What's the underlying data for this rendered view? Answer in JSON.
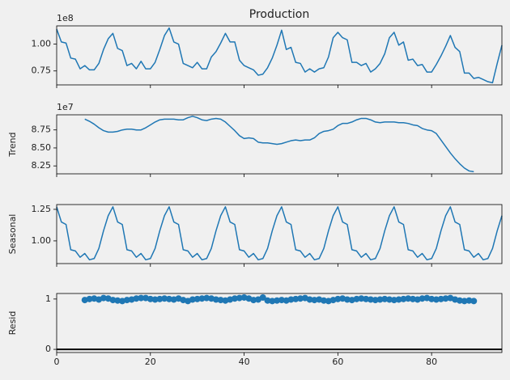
{
  "chart_data": [
    {
      "type": "line",
      "title": "Production",
      "offset_label": "1e8",
      "color": "#1f77b4",
      "x": [
        0,
        1,
        2,
        3,
        4,
        5,
        6,
        7,
        8,
        9,
        10,
        11,
        12,
        13,
        14,
        15,
        16,
        17,
        18,
        19,
        20,
        21,
        22,
        23,
        24,
        25,
        26,
        27,
        28,
        29,
        30,
        31,
        32,
        33,
        34,
        35,
        36,
        37,
        38,
        39,
        40,
        41,
        42,
        43,
        44,
        45,
        46,
        47,
        48,
        49,
        50,
        51,
        52,
        53,
        54,
        55,
        56,
        57,
        58,
        59,
        60,
        61,
        62,
        63,
        64,
        65,
        66,
        67,
        68,
        69,
        70,
        71,
        72,
        73,
        74,
        75,
        76,
        77,
        78,
        79,
        80,
        81,
        82,
        83,
        84,
        85,
        86,
        87,
        88,
        89,
        90,
        91,
        92,
        93,
        94,
        95
      ],
      "values": [
        1.14,
        1.02,
        1.01,
        0.87,
        0.86,
        0.77,
        0.8,
        0.76,
        0.76,
        0.82,
        0.95,
        1.05,
        1.1,
        0.96,
        0.94,
        0.8,
        0.82,
        0.77,
        0.84,
        0.77,
        0.77,
        0.83,
        0.95,
        1.08,
        1.15,
        1.02,
        1.0,
        0.82,
        0.8,
        0.78,
        0.83,
        0.77,
        0.77,
        0.88,
        0.93,
        1.01,
        1.1,
        1.02,
        1.02,
        0.85,
        0.8,
        0.78,
        0.76,
        0.71,
        0.72,
        0.78,
        0.87,
        0.99,
        1.13,
        0.95,
        0.97,
        0.83,
        0.82,
        0.74,
        0.77,
        0.74,
        0.77,
        0.78,
        0.88,
        1.06,
        1.11,
        1.06,
        1.04,
        0.83,
        0.83,
        0.8,
        0.82,
        0.74,
        0.77,
        0.82,
        0.91,
        1.06,
        1.11,
        0.99,
        1.02,
        0.85,
        0.86,
        0.8,
        0.81,
        0.74,
        0.74,
        0.81,
        0.89,
        0.98,
        1.08,
        0.97,
        0.93,
        0.73,
        0.73,
        0.68,
        0.69,
        0.67,
        0.65,
        0.64,
        0.82,
        0.99
      ],
      "xlim": [
        0,
        95
      ],
      "xticks": [
        0,
        20,
        40,
        60,
        80
      ],
      "ylim": [
        0.62,
        1.17
      ],
      "yticks": [
        {
          "value": 0.75,
          "label": "0.75"
        },
        {
          "value": 1,
          "label": "1.00"
        }
      ]
    },
    {
      "type": "line",
      "ylabel": "Trend",
      "offset_label": "1e7",
      "color": "#1f77b4",
      "x": [
        0,
        1,
        2,
        3,
        4,
        5,
        6,
        7,
        8,
        9,
        10,
        11,
        12,
        13,
        14,
        15,
        16,
        17,
        18,
        19,
        20,
        21,
        22,
        23,
        24,
        25,
        26,
        27,
        28,
        29,
        30,
        31,
        32,
        33,
        34,
        35,
        36,
        37,
        38,
        39,
        40,
        41,
        42,
        43,
        44,
        45,
        46,
        47,
        48,
        49,
        50,
        51,
        52,
        53,
        54,
        55,
        56,
        57,
        58,
        59,
        60,
        61,
        62,
        63,
        64,
        65,
        66,
        67,
        68,
        69,
        70,
        71,
        72,
        73,
        74,
        75,
        76,
        77,
        78,
        79,
        80,
        81,
        82,
        83,
        84,
        85,
        86,
        87,
        88,
        89,
        90,
        91,
        92,
        93,
        94,
        95
      ],
      "values": [
        null,
        null,
        null,
        null,
        null,
        null,
        8.9,
        8.87,
        8.83,
        8.78,
        8.74,
        8.72,
        8.72,
        8.73,
        8.75,
        8.76,
        8.76,
        8.75,
        8.75,
        8.78,
        8.82,
        8.86,
        8.89,
        8.9,
        8.9,
        8.9,
        8.89,
        8.89,
        8.92,
        8.94,
        8.92,
        8.89,
        8.88,
        8.9,
        8.91,
        8.9,
        8.86,
        8.8,
        8.74,
        8.67,
        8.63,
        8.64,
        8.63,
        8.58,
        8.57,
        8.57,
        8.56,
        8.55,
        8.56,
        8.58,
        8.6,
        8.61,
        8.6,
        8.61,
        8.61,
        8.64,
        8.7,
        8.73,
        8.74,
        8.76,
        8.81,
        8.84,
        8.84,
        8.86,
        8.89,
        8.91,
        8.91,
        8.89,
        8.86,
        8.85,
        8.86,
        8.86,
        8.86,
        8.85,
        8.85,
        8.84,
        8.82,
        8.81,
        8.77,
        8.75,
        8.74,
        8.7,
        8.61,
        8.52,
        8.43,
        8.35,
        8.28,
        8.22,
        8.18,
        8.17,
        null,
        null,
        null,
        null,
        null,
        null
      ],
      "xlim": [
        0,
        95
      ],
      "xticks": [
        0,
        20,
        40,
        60,
        80
      ],
      "ylim": [
        8.14,
        8.96
      ],
      "yticks": [
        8.25,
        {
          "value": 8.5,
          "label": "8.50"
        },
        8.75
      ]
    },
    {
      "type": "line",
      "ylabel": "Seasonal",
      "color": "#1f77b4",
      "x": [
        0,
        1,
        2,
        3,
        4,
        5,
        6,
        7,
        8,
        9,
        10,
        11,
        12,
        13,
        14,
        15,
        16,
        17,
        18,
        19,
        20,
        21,
        22,
        23,
        24,
        25,
        26,
        27,
        28,
        29,
        30,
        31,
        32,
        33,
        34,
        35,
        36,
        37,
        38,
        39,
        40,
        41,
        42,
        43,
        44,
        45,
        46,
        47,
        48,
        49,
        50,
        51,
        52,
        53,
        54,
        55,
        56,
        57,
        58,
        59,
        60,
        61,
        62,
        63,
        64,
        65,
        66,
        67,
        68,
        69,
        70,
        71,
        72,
        73,
        74,
        75,
        76,
        77,
        78,
        79,
        80,
        81,
        82,
        83,
        84,
        85,
        86,
        87,
        88,
        89,
        90,
        91,
        92,
        93,
        94,
        95
      ],
      "values": [
        1.27,
        1.15,
        1.13,
        0.93,
        0.92,
        0.87,
        0.9,
        0.85,
        0.86,
        0.94,
        1.08,
        1.2,
        1.27,
        1.15,
        1.13,
        0.93,
        0.92,
        0.87,
        0.9,
        0.85,
        0.86,
        0.94,
        1.08,
        1.2,
        1.27,
        1.15,
        1.13,
        0.93,
        0.92,
        0.87,
        0.9,
        0.85,
        0.86,
        0.94,
        1.08,
        1.2,
        1.27,
        1.15,
        1.13,
        0.93,
        0.92,
        0.87,
        0.9,
        0.85,
        0.86,
        0.94,
        1.08,
        1.2,
        1.27,
        1.15,
        1.13,
        0.93,
        0.92,
        0.87,
        0.9,
        0.85,
        0.86,
        0.94,
        1.08,
        1.2,
        1.27,
        1.15,
        1.13,
        0.93,
        0.92,
        0.87,
        0.9,
        0.85,
        0.86,
        0.94,
        1.08,
        1.2,
        1.27,
        1.15,
        1.13,
        0.93,
        0.92,
        0.87,
        0.9,
        0.85,
        0.86,
        0.94,
        1.08,
        1.2,
        1.27,
        1.15,
        1.13,
        0.93,
        0.92,
        0.87,
        0.9,
        0.85,
        0.86,
        0.94,
        1.08,
        1.2
      ],
      "xlim": [
        0,
        95
      ],
      "xticks": [
        0,
        20,
        40,
        60,
        80
      ],
      "ylim": [
        0.82,
        1.288
      ],
      "yticks": [
        {
          "value": 1,
          "label": "1.00"
        },
        1.25
      ]
    },
    {
      "type": "scatter",
      "ylabel": "Resid",
      "color": "#1f77b4",
      "hline": 0,
      "x": [
        0,
        1,
        2,
        3,
        4,
        5,
        6,
        7,
        8,
        9,
        10,
        11,
        12,
        13,
        14,
        15,
        16,
        17,
        18,
        19,
        20,
        21,
        22,
        23,
        24,
        25,
        26,
        27,
        28,
        29,
        30,
        31,
        32,
        33,
        34,
        35,
        36,
        37,
        38,
        39,
        40,
        41,
        42,
        43,
        44,
        45,
        46,
        47,
        48,
        49,
        50,
        51,
        52,
        53,
        54,
        55,
        56,
        57,
        58,
        59,
        60,
        61,
        62,
        63,
        64,
        65,
        66,
        67,
        68,
        69,
        70,
        71,
        72,
        73,
        74,
        75,
        76,
        77,
        78,
        79,
        80,
        81,
        82,
        83,
        84,
        85,
        86,
        87,
        88,
        89,
        90,
        91,
        92,
        93,
        94,
        95
      ],
      "values": [
        null,
        null,
        null,
        null,
        null,
        null,
        0.98,
        1.0,
        1.01,
        0.99,
        1.02,
        1.01,
        0.98,
        0.97,
        0.96,
        0.98,
        0.99,
        1.01,
        1.02,
        1.02,
        1.0,
        0.99,
        1.0,
        1.01,
        1.0,
        0.99,
        1.01,
        0.98,
        0.96,
        0.99,
        1.0,
        1.01,
        1.02,
        1.01,
        0.99,
        0.98,
        0.97,
        0.99,
        1.01,
        1.02,
        1.03,
        1.01,
        0.98,
        0.99,
        1.03,
        0.97,
        0.96,
        0.97,
        0.98,
        0.97,
        0.99,
        1.0,
        1.01,
        1.02,
        0.99,
        0.98,
        0.99,
        0.97,
        0.96,
        0.98,
        1.0,
        1.01,
        0.99,
        0.98,
        1.0,
        1.01,
        1.0,
        0.99,
        0.98,
        0.99,
        1.0,
        0.99,
        0.98,
        0.99,
        1.0,
        1.01,
        1.0,
        0.99,
        1.01,
        1.02,
        1.0,
        0.99,
        1.0,
        1.01,
        1.02,
        0.99,
        0.97,
        0.96,
        0.97,
        0.96,
        null,
        null,
        null,
        null,
        null,
        null
      ],
      "xlim": [
        0,
        95
      ],
      "xticks": [
        0,
        20,
        40,
        60,
        80
      ],
      "ylim": [
        -0.063,
        1.11
      ],
      "yticks": [
        0,
        1
      ]
    }
  ]
}
